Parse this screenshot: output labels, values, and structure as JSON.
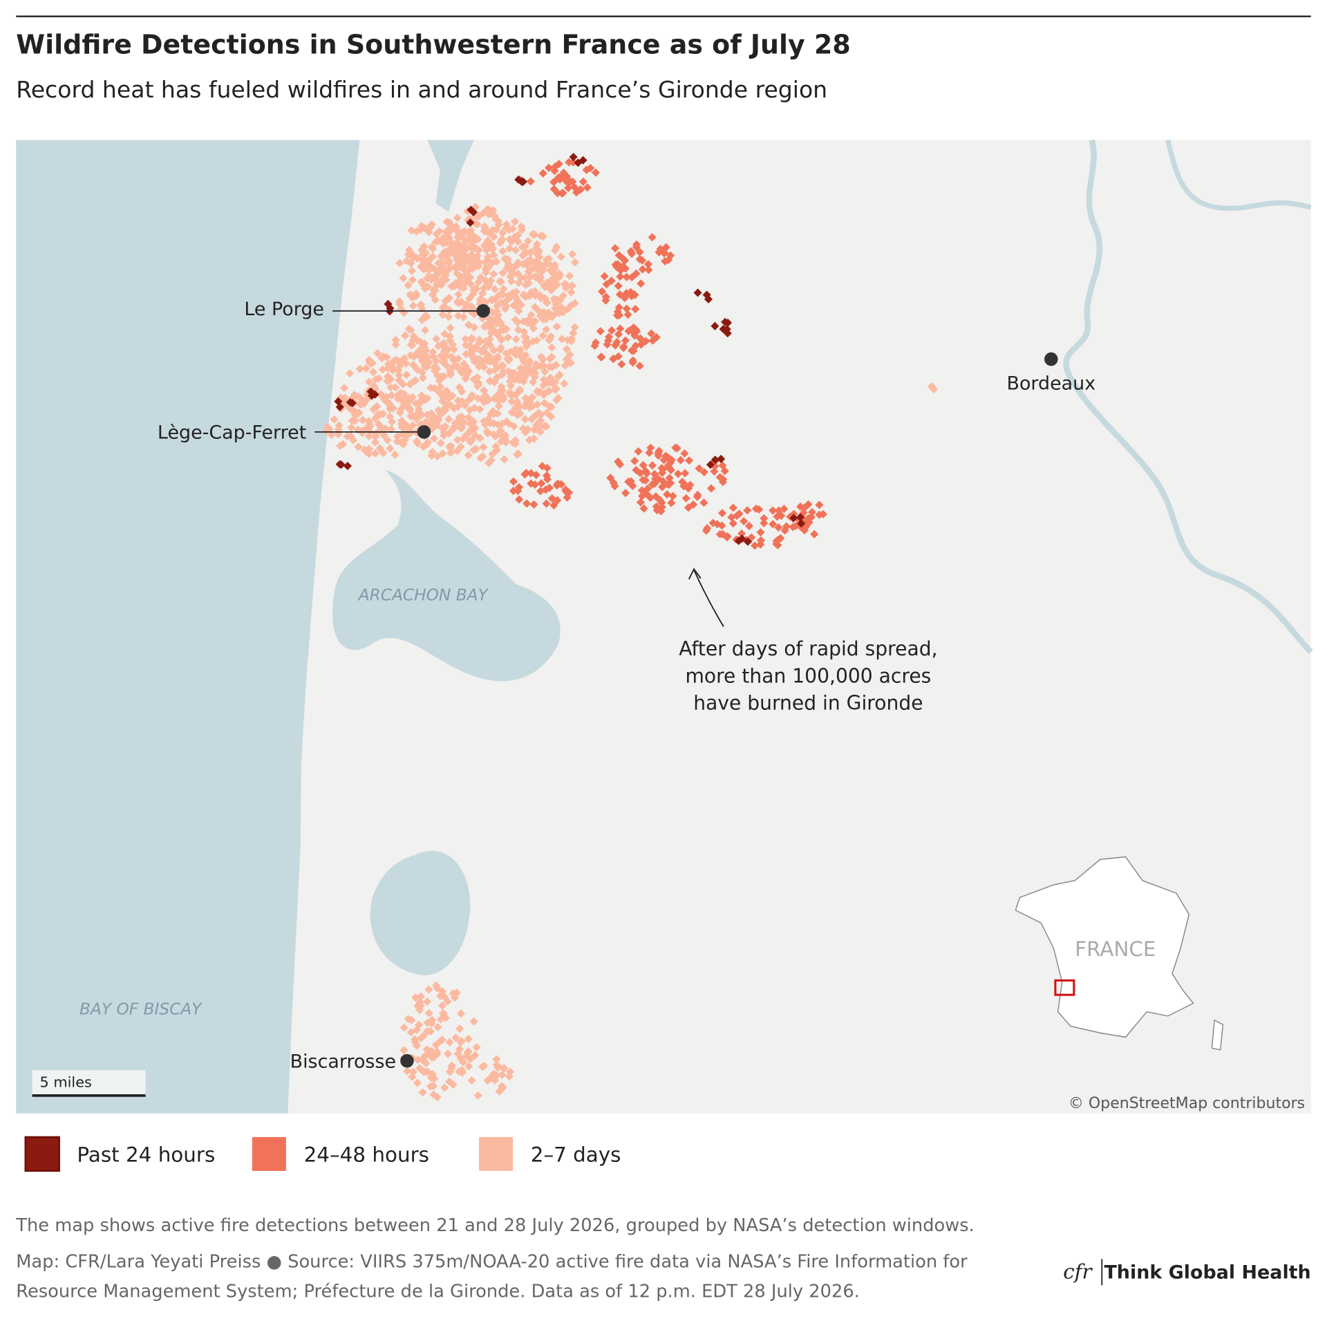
{
  "header": {
    "title": "Wildfire Detections in Southwestern France as of July 28",
    "subtitle": "Record heat has fueled wildfires in and around France’s Gironde region"
  },
  "map": {
    "places": [
      "Le Porge",
      "Lège-Cap-Ferret",
      "Bordeaux",
      "Biscarrosse"
    ],
    "water_labels": [
      "ARCACHON BAY",
      "BAY OF BISCAY"
    ],
    "annotation": [
      "After days of rapid spread,",
      "more than 100,000 acres",
      "have burned in Gironde"
    ],
    "scale_label": "5 miles",
    "inset_label": "FRANCE",
    "attribution": "© OpenStreetMap contributors"
  },
  "legend": [
    {
      "label": "Past 24 hours",
      "color": "#8b1a10"
    },
    {
      "label": "24–48 hours",
      "color": "#f07258"
    },
    {
      "label": "2–7 days",
      "color": "#fbb9a0"
    }
  ],
  "footer": {
    "note": "The map shows active fire detections between 21 and 28 July 2026, grouped by NASA’s detection windows.",
    "source_lines": [
      "Map: CFR/Lara Yeyati Preiss ● Source: VIIRS 375m/NOAA-20 active fire data via NASA’s Fire Information for",
      "Resource Management System; Préfecture de la Gironde. Data as of 12 p.m. EDT 28 July 2026."
    ],
    "brand_mark": "cfr",
    "brand": "Think Global Health"
  }
}
